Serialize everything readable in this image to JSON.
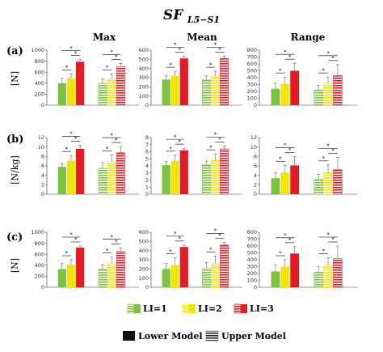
{
  "title": {
    "main": "SF",
    "sub": "L5−S1"
  },
  "columns": [
    "Max",
    "Mean",
    "Range"
  ],
  "rows": [
    {
      "label": "(a)",
      "unit": "[N]"
    },
    {
      "label": "(b)",
      "unit": "[N/kg]"
    },
    {
      "label": "(c)",
      "unit": "[N]"
    }
  ],
  "colors": {
    "li1": "#7dc242",
    "li2": "#f2e600",
    "li3": "#e51b24"
  },
  "legend": {
    "levels": [
      "LI=1",
      "LI=2",
      "LI=3"
    ],
    "models": [
      "Lower Model",
      "Upper Model"
    ]
  },
  "significance_marker": "*",
  "chart_data": [
    {
      "row": 0,
      "col": 0,
      "type": "bar",
      "ylim": [
        0,
        1000
      ],
      "yticks": [
        0,
        200,
        400,
        600,
        800,
        1000
      ],
      "categories": [
        "Lower Model",
        "Upper Model"
      ],
      "series": [
        {
          "name": "LI=1",
          "values": [
            400,
            400
          ],
          "errors": [
            90,
            80
          ]
        },
        {
          "name": "LI=2",
          "values": [
            490,
            480
          ],
          "errors": [
            80,
            90
          ]
        },
        {
          "name": "LI=3",
          "values": [
            790,
            700
          ],
          "errors": [
            40,
            60
          ]
        }
      ]
    },
    {
      "row": 0,
      "col": 1,
      "type": "bar",
      "ylim": [
        0,
        600
      ],
      "yticks": [
        0,
        100,
        200,
        300,
        400,
        500,
        600
      ],
      "categories": [
        "Lower Model",
        "Upper Model"
      ],
      "series": [
        {
          "name": "LI=1",
          "values": [
            280,
            280
          ],
          "errors": [
            40,
            40
          ]
        },
        {
          "name": "LI=2",
          "values": [
            320,
            320
          ],
          "errors": [
            50,
            50
          ]
        },
        {
          "name": "LI=3",
          "values": [
            510,
            510
          ],
          "errors": [
            25,
            25
          ]
        }
      ]
    },
    {
      "row": 0,
      "col": 2,
      "type": "bar",
      "ylim": [
        0,
        800
      ],
      "yticks": [
        0,
        100,
        200,
        300,
        400,
        500,
        600,
        700,
        800
      ],
      "categories": [
        "Lower Model",
        "Upper Model"
      ],
      "series": [
        {
          "name": "LI=1",
          "values": [
            240,
            220
          ],
          "errors": [
            80,
            70
          ]
        },
        {
          "name": "LI=2",
          "values": [
            310,
            320
          ],
          "errors": [
            100,
            90
          ]
        },
        {
          "name": "LI=3",
          "values": [
            500,
            430
          ],
          "errors": [
            110,
            160
          ]
        }
      ]
    },
    {
      "row": 1,
      "col": 0,
      "type": "bar",
      "ylim": [
        0,
        12
      ],
      "yticks": [
        0,
        2,
        4,
        6,
        8,
        10,
        12
      ],
      "categories": [
        "Lower Model",
        "Upper Model"
      ],
      "series": [
        {
          "name": "LI=1",
          "values": [
            5.8,
            5.5
          ],
          "errors": [
            0.7,
            1.2
          ]
        },
        {
          "name": "LI=2",
          "values": [
            7.1,
            7.0
          ],
          "errors": [
            1.1,
            1.3
          ]
        },
        {
          "name": "LI=3",
          "values": [
            9.6,
            8.8
          ],
          "errors": [
            0.8,
            1.3
          ]
        }
      ]
    },
    {
      "row": 1,
      "col": 1,
      "type": "bar",
      "ylim": [
        0,
        8
      ],
      "yticks": [
        0,
        1,
        2,
        3,
        4,
        5,
        6,
        7,
        8
      ],
      "categories": [
        "Lower Model",
        "Upper Model"
      ],
      "series": [
        {
          "name": "LI=1",
          "values": [
            4.1,
            4.2
          ],
          "errors": [
            0.5,
            0.5
          ]
        },
        {
          "name": "LI=2",
          "values": [
            4.7,
            4.8
          ],
          "errors": [
            0.8,
            0.9
          ]
        },
        {
          "name": "LI=3",
          "values": [
            6.2,
            6.4
          ],
          "errors": [
            0.3,
            0.4
          ]
        }
      ]
    },
    {
      "row": 1,
      "col": 2,
      "type": "bar",
      "ylim": [
        0,
        12
      ],
      "yticks": [
        0,
        2,
        4,
        6,
        8,
        10,
        12
      ],
      "categories": [
        "Lower Model",
        "Upper Model"
      ],
      "series": [
        {
          "name": "LI=1",
          "values": [
            3.4,
            3.2
          ],
          "errors": [
            1.1,
            1.0
          ]
        },
        {
          "name": "LI=2",
          "values": [
            4.6,
            4.6
          ],
          "errors": [
            1.5,
            1.6
          ]
        },
        {
          "name": "LI=3",
          "values": [
            6.1,
            5.2
          ],
          "errors": [
            1.9,
            2.6
          ]
        }
      ]
    },
    {
      "row": 2,
      "col": 0,
      "type": "bar",
      "ylim": [
        0,
        1000
      ],
      "yticks": [
        0,
        200,
        400,
        600,
        800,
        1000
      ],
      "categories": [
        "Lower Model",
        "Upper Model"
      ],
      "series": [
        {
          "name": "LI=1",
          "values": [
            330,
            330
          ],
          "errors": [
            100,
            80
          ]
        },
        {
          "name": "LI=2",
          "values": [
            410,
            440
          ],
          "errors": [
            90,
            110
          ]
        },
        {
          "name": "LI=3",
          "values": [
            720,
            650
          ],
          "errors": [
            30,
            60
          ]
        }
      ]
    },
    {
      "row": 2,
      "col": 1,
      "type": "bar",
      "ylim": [
        0,
        600
      ],
      "yticks": [
        0,
        100,
        200,
        300,
        400,
        500,
        600
      ],
      "categories": [
        "Lower Model",
        "Upper Model"
      ],
      "series": [
        {
          "name": "LI=1",
          "values": [
            200,
            210
          ],
          "errors": [
            60,
            60
          ]
        },
        {
          "name": "LI=2",
          "values": [
            240,
            260
          ],
          "errors": [
            80,
            80
          ]
        },
        {
          "name": "LI=3",
          "values": [
            440,
            460
          ],
          "errors": [
            20,
            30
          ]
        }
      ]
    },
    {
      "row": 2,
      "col": 2,
      "type": "bar",
      "ylim": [
        0,
        800
      ],
      "yticks": [
        0,
        100,
        200,
        300,
        400,
        500,
        600,
        700,
        800
      ],
      "categories": [
        "Lower Model",
        "Upper Model"
      ],
      "series": [
        {
          "name": "LI=1",
          "values": [
            230,
            220
          ],
          "errors": [
            90,
            80
          ]
        },
        {
          "name": "LI=2",
          "values": [
            300,
            320
          ],
          "errors": [
            100,
            110
          ]
        },
        {
          "name": "LI=3",
          "values": [
            490,
            420
          ],
          "errors": [
            100,
            180
          ]
        }
      ]
    }
  ]
}
